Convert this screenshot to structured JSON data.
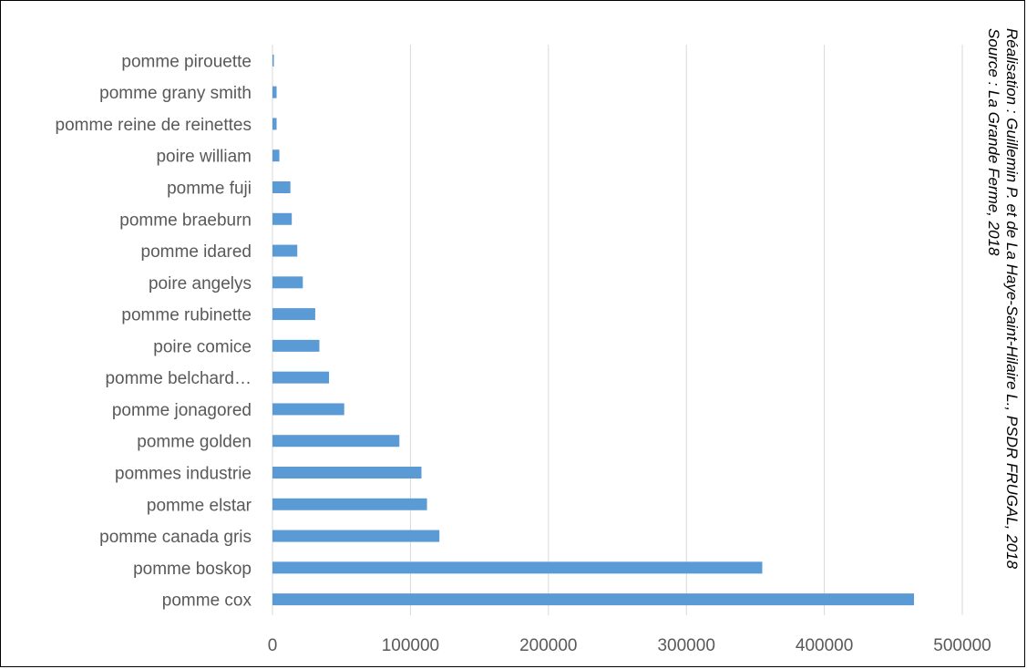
{
  "chart_data": {
    "type": "bar",
    "orientation": "horizontal",
    "categories": [
      "pomme cox",
      "pomme boskop",
      "pomme canada gris",
      "pomme elstar",
      "pommes industrie",
      "pomme golden",
      "pomme jonagored",
      "pomme belchard…",
      "poire comice",
      "pomme rubinette",
      "poire angelys",
      "pomme idared",
      "pomme braeburn",
      "pomme fuji",
      "poire william",
      "pomme reine de reinettes",
      "pomme grany smith",
      "pomme pirouette"
    ],
    "values": [
      465000,
      355000,
      121000,
      112000,
      108000,
      92000,
      52000,
      41000,
      34000,
      31000,
      22000,
      18000,
      14000,
      13000,
      5000,
      3000,
      3000,
      1000
    ],
    "xlim": [
      0,
      500000
    ],
    "xticks": [
      0,
      100000,
      200000,
      300000,
      400000,
      500000
    ],
    "xtick_labels": [
      "0",
      "100000",
      "200000",
      "300000",
      "400000",
      "500000"
    ],
    "grid": "vertical",
    "legend": "none",
    "bar_color": "#5b9bd5",
    "grid_color": "#d9d9d9"
  },
  "credits": {
    "source": "Source : La Grande Ferme, 2018",
    "realisation": "Réalisation : Guillemin P. et de La Haye-Saint-Hilaire L., PSDR FRUGAL, 2018"
  }
}
